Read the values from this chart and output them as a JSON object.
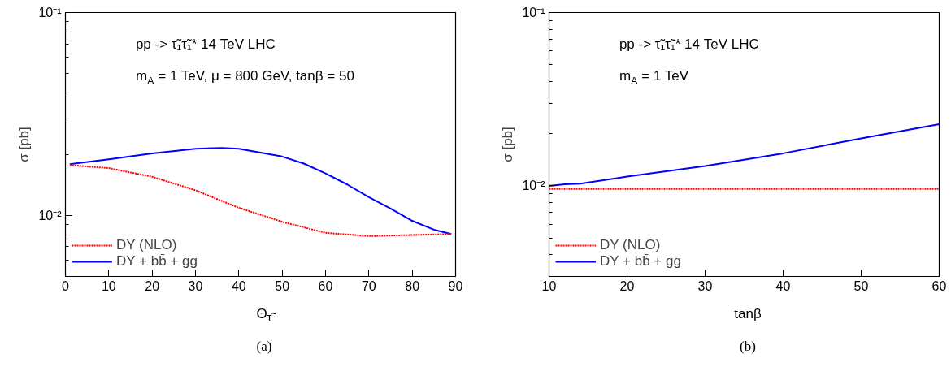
{
  "chart_data": [
    {
      "type": "line",
      "xlabel": "Θ$_{τ̃}$",
      "ylabel": "σ [pb]",
      "log": "y",
      "grid": false,
      "legend": "bottom left",
      "annotations": [
        "pp -> τ̃₁τ̃₁*  14 TeV LHC",
        "m$_{A}$ = 1 TeV, μ = 800 GeV, tanβ = 50",
        "(a)"
      ],
      "xlim": [
        0,
        90
      ],
      "xticks": [
        0,
        10,
        20,
        30,
        40,
        50,
        60,
        70,
        80,
        90
      ],
      "ylim": [
        0.005,
        0.1
      ],
      "yticks": [
        {
          "value": 0.006,
          "label": null
        },
        {
          "value": 0.007,
          "label": null
        },
        {
          "value": 0.008,
          "label": null
        },
        {
          "value": 0.009,
          "label": null
        },
        {
          "value": 0.01,
          "label": "10⁻²"
        },
        {
          "value": 0.02,
          "label": null
        },
        {
          "value": 0.03,
          "label": null
        },
        {
          "value": 0.04,
          "label": null
        },
        {
          "value": 0.05,
          "label": null
        },
        {
          "value": 0.06,
          "label": null
        },
        {
          "value": 0.07,
          "label": null
        },
        {
          "value": 0.08,
          "label": null
        },
        {
          "value": 0.09,
          "label": null
        },
        {
          "value": 0.1,
          "label": "10⁻¹"
        }
      ],
      "series": [
        {
          "name": "DY (NLO)",
          "color": "#ff0000",
          "line_style": "dotted",
          "x": [
            1,
            10,
            20,
            30,
            40,
            50,
            60,
            70,
            80,
            89
          ],
          "values": [
            0.0177,
            0.0171,
            0.0155,
            0.0133,
            0.0109,
            0.0093,
            0.0082,
            0.0079,
            0.008,
            0.0081
          ]
        },
        {
          "name": "DY + bb̄ + gg",
          "color": "#0000ff",
          "line_style": "solid",
          "x": [
            1,
            10,
            20,
            30,
            36,
            40,
            50,
            55,
            60,
            65,
            70,
            75,
            80,
            85,
            89
          ],
          "values": [
            0.0179,
            0.0189,
            0.0202,
            0.0213,
            0.0215,
            0.0213,
            0.0195,
            0.018,
            0.0161,
            0.0142,
            0.0123,
            0.0108,
            0.0094,
            0.0085,
            0.0081
          ]
        }
      ]
    },
    {
      "type": "line",
      "xlabel": "tanβ",
      "ylabel": "σ [pb]",
      "log": "y",
      "grid": false,
      "legend": "bottom left",
      "annotations": [
        "pp -> τ̃₁τ̃₁*  14 TeV LHC",
        "m$_{A}$ = 1 TeV",
        "(b)"
      ],
      "xlim": [
        10,
        60
      ],
      "xticks": [
        10,
        20,
        30,
        40,
        50,
        60
      ],
      "ylim": [
        0.003,
        0.1
      ],
      "yticks": [
        {
          "value": 0.004,
          "label": null
        },
        {
          "value": 0.005,
          "label": null
        },
        {
          "value": 0.006,
          "label": null
        },
        {
          "value": 0.007,
          "label": null
        },
        {
          "value": 0.008,
          "label": null
        },
        {
          "value": 0.009,
          "label": null
        },
        {
          "value": 0.01,
          "label": "10⁻²"
        },
        {
          "value": 0.02,
          "label": null
        },
        {
          "value": 0.03,
          "label": null
        },
        {
          "value": 0.04,
          "label": null
        },
        {
          "value": 0.05,
          "label": null
        },
        {
          "value": 0.06,
          "label": null
        },
        {
          "value": 0.07,
          "label": null
        },
        {
          "value": 0.08,
          "label": null
        },
        {
          "value": 0.09,
          "label": null
        },
        {
          "value": 0.1,
          "label": "10⁻¹"
        }
      ],
      "series": [
        {
          "name": "DY (NLO)",
          "color": "#ff0000",
          "line_style": "dotted",
          "x": [
            10,
            60
          ],
          "values": [
            0.0096,
            0.0096
          ]
        },
        {
          "name": "DY + bb̄ + gg",
          "color": "#0000ff",
          "line_style": "solid",
          "x": [
            10,
            12,
            14,
            20,
            30,
            40,
            50,
            60
          ],
          "values": [
            0.01,
            0.0102,
            0.0103,
            0.0113,
            0.013,
            0.0154,
            0.0188,
            0.0227
          ]
        }
      ]
    }
  ]
}
